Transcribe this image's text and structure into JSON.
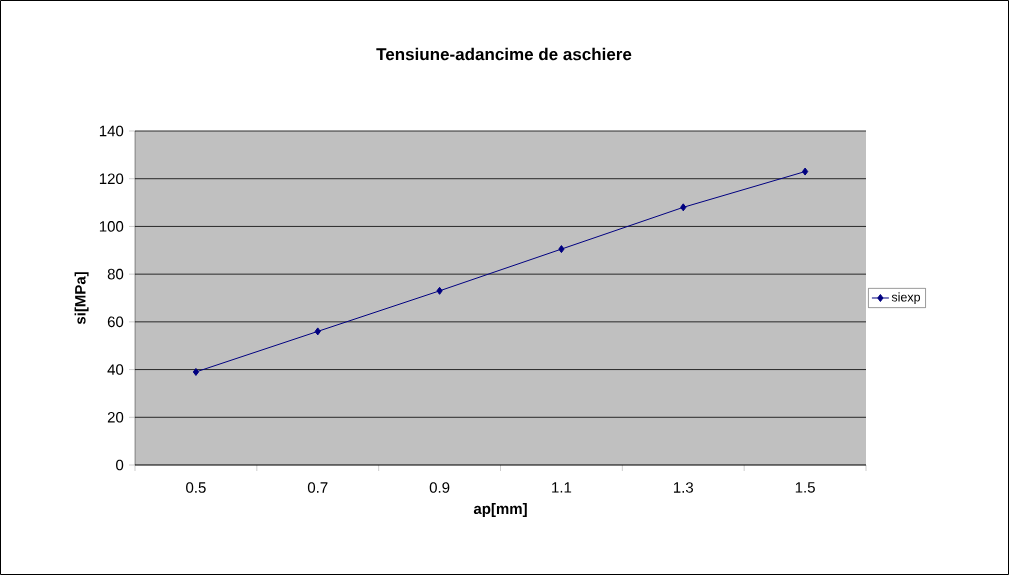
{
  "chart_data": {
    "type": "line",
    "title": "Tensiune-adancime de aschiere",
    "xlabel": "ap[mm]",
    "ylabel": "si[MPa]",
    "categories": [
      "0.5",
      "0.7",
      "0.9",
      "1.1",
      "1.3",
      "1.5"
    ],
    "series": [
      {
        "name": "siexp",
        "color": "#000080",
        "values": [
          39,
          56,
          73,
          90.5,
          108,
          123
        ]
      }
    ],
    "ylim": [
      0,
      140
    ],
    "yticks": [
      0,
      20,
      40,
      60,
      80,
      100,
      120,
      140
    ],
    "grid": "y",
    "legend": "right",
    "marker": "diamond",
    "line_style": "solid"
  }
}
